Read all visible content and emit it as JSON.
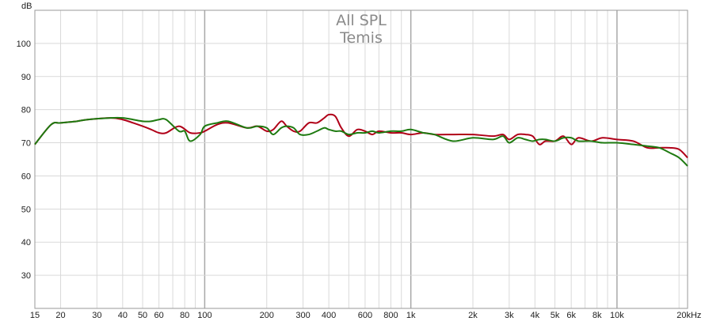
{
  "chart_data": {
    "type": "line",
    "title_lines": [
      "All SPL",
      "Temis"
    ],
    "ylabel": "dB",
    "x_scale": "log",
    "xlim": [
      15,
      22000
    ],
    "ylim": [
      20,
      110
    ],
    "grid": true,
    "x_ticks": [
      {
        "value": 15,
        "label": "15"
      },
      {
        "value": 20,
        "label": "20"
      },
      {
        "value": 30,
        "label": "30"
      },
      {
        "value": 40,
        "label": "40"
      },
      {
        "value": 50,
        "label": "50"
      },
      {
        "value": 60,
        "label": "60"
      },
      {
        "value": 80,
        "label": "80"
      },
      {
        "value": 100,
        "label": "100"
      },
      {
        "value": 200,
        "label": "200"
      },
      {
        "value": 300,
        "label": "300"
      },
      {
        "value": 400,
        "label": "400"
      },
      {
        "value": 600,
        "label": "600"
      },
      {
        "value": 800,
        "label": "800"
      },
      {
        "value": 1000,
        "label": "1k"
      },
      {
        "value": 2000,
        "label": "2k"
      },
      {
        "value": 3000,
        "label": "3k"
      },
      {
        "value": 4000,
        "label": "4k"
      },
      {
        "value": 5000,
        "label": "5k"
      },
      {
        "value": 6000,
        "label": "6k"
      },
      {
        "value": 8000,
        "label": "8k"
      },
      {
        "value": 10000,
        "label": "10k"
      },
      {
        "value": 20000,
        "label": "20kHz"
      }
    ],
    "x_grid_major": [
      100,
      1000,
      10000
    ],
    "x_grid_minor": [
      20,
      30,
      40,
      50,
      60,
      70,
      80,
      90,
      200,
      300,
      400,
      500,
      600,
      700,
      800,
      900,
      2000,
      3000,
      4000,
      5000,
      6000,
      7000,
      8000,
      9000,
      20000
    ],
    "y_ticks": [
      30,
      40,
      50,
      60,
      70,
      80,
      90,
      100
    ],
    "series": [
      {
        "color": "#b00018",
        "x": [
          15,
          18,
          20,
          24,
          27,
          35,
          40,
          45,
          50,
          55,
          60,
          65,
          75,
          85,
          95,
          100,
          115,
          130,
          160,
          180,
          200,
          215,
          235,
          250,
          270,
          290,
          320,
          350,
          380,
          400,
          430,
          460,
          500,
          550,
          600,
          650,
          700,
          800,
          900,
          1000,
          1150,
          1300,
          1600,
          2000,
          2500,
          2800,
          3000,
          3300,
          3600,
          3900,
          4200,
          4500,
          5000,
          5500,
          6000,
          6500,
          7500,
          8500,
          10000,
          12000,
          14000,
          16000,
          18000,
          20000,
          22000
        ],
        "y": [
          69.5,
          75.5,
          76,
          76.5,
          77,
          77.5,
          77,
          76,
          75,
          74,
          73,
          73,
          75,
          73,
          73,
          73.5,
          75.5,
          76,
          74.5,
          75,
          73.5,
          74,
          76.5,
          75,
          73.5,
          73.5,
          76,
          76,
          77.5,
          78.5,
          78,
          74.5,
          72,
          74,
          73.5,
          72.5,
          73.5,
          73,
          73,
          72.5,
          73,
          72.5,
          72.5,
          72.5,
          72,
          72.5,
          71,
          72.5,
          72.5,
          72,
          69.5,
          70.5,
          70.5,
          72,
          69.5,
          71.5,
          70.5,
          71.5,
          71,
          70.5,
          68.5,
          68.5,
          68.5,
          68,
          65.5
        ]
      },
      {
        "color": "#1e7a10",
        "x": [
          15,
          18,
          20,
          24,
          27,
          35,
          40,
          45,
          50,
          55,
          60,
          65,
          75,
          80,
          85,
          95,
          100,
          115,
          130,
          160,
          180,
          200,
          215,
          235,
          250,
          270,
          290,
          320,
          350,
          380,
          400,
          430,
          460,
          500,
          550,
          600,
          650,
          700,
          800,
          900,
          1000,
          1150,
          1300,
          1600,
          2000,
          2500,
          2800,
          3000,
          3300,
          3600,
          3900,
          4200,
          4500,
          5000,
          5500,
          6000,
          6500,
          7500,
          8500,
          10000,
          12000,
          14000,
          16000,
          18000,
          20000,
          22000
        ],
        "y": [
          69.5,
          75.5,
          76,
          76.5,
          77,
          77.5,
          77.5,
          77,
          76.5,
          76.5,
          77,
          77,
          73.5,
          73.5,
          70.5,
          72.5,
          75,
          76,
          76.5,
          74.5,
          75,
          74.5,
          72.5,
          74.5,
          75,
          74.5,
          72.5,
          72.5,
          73.5,
          74.5,
          74,
          73.5,
          73.5,
          72.5,
          73,
          73,
          73.5,
          73,
          73.5,
          73.5,
          74,
          73,
          72.5,
          70.5,
          71.5,
          71,
          72,
          70,
          71.5,
          71,
          70.5,
          71,
          71,
          70.5,
          71.5,
          71.5,
          70.5,
          70.5,
          70,
          70,
          69.5,
          69,
          68.5,
          67,
          65.5,
          63
        ]
      }
    ]
  }
}
